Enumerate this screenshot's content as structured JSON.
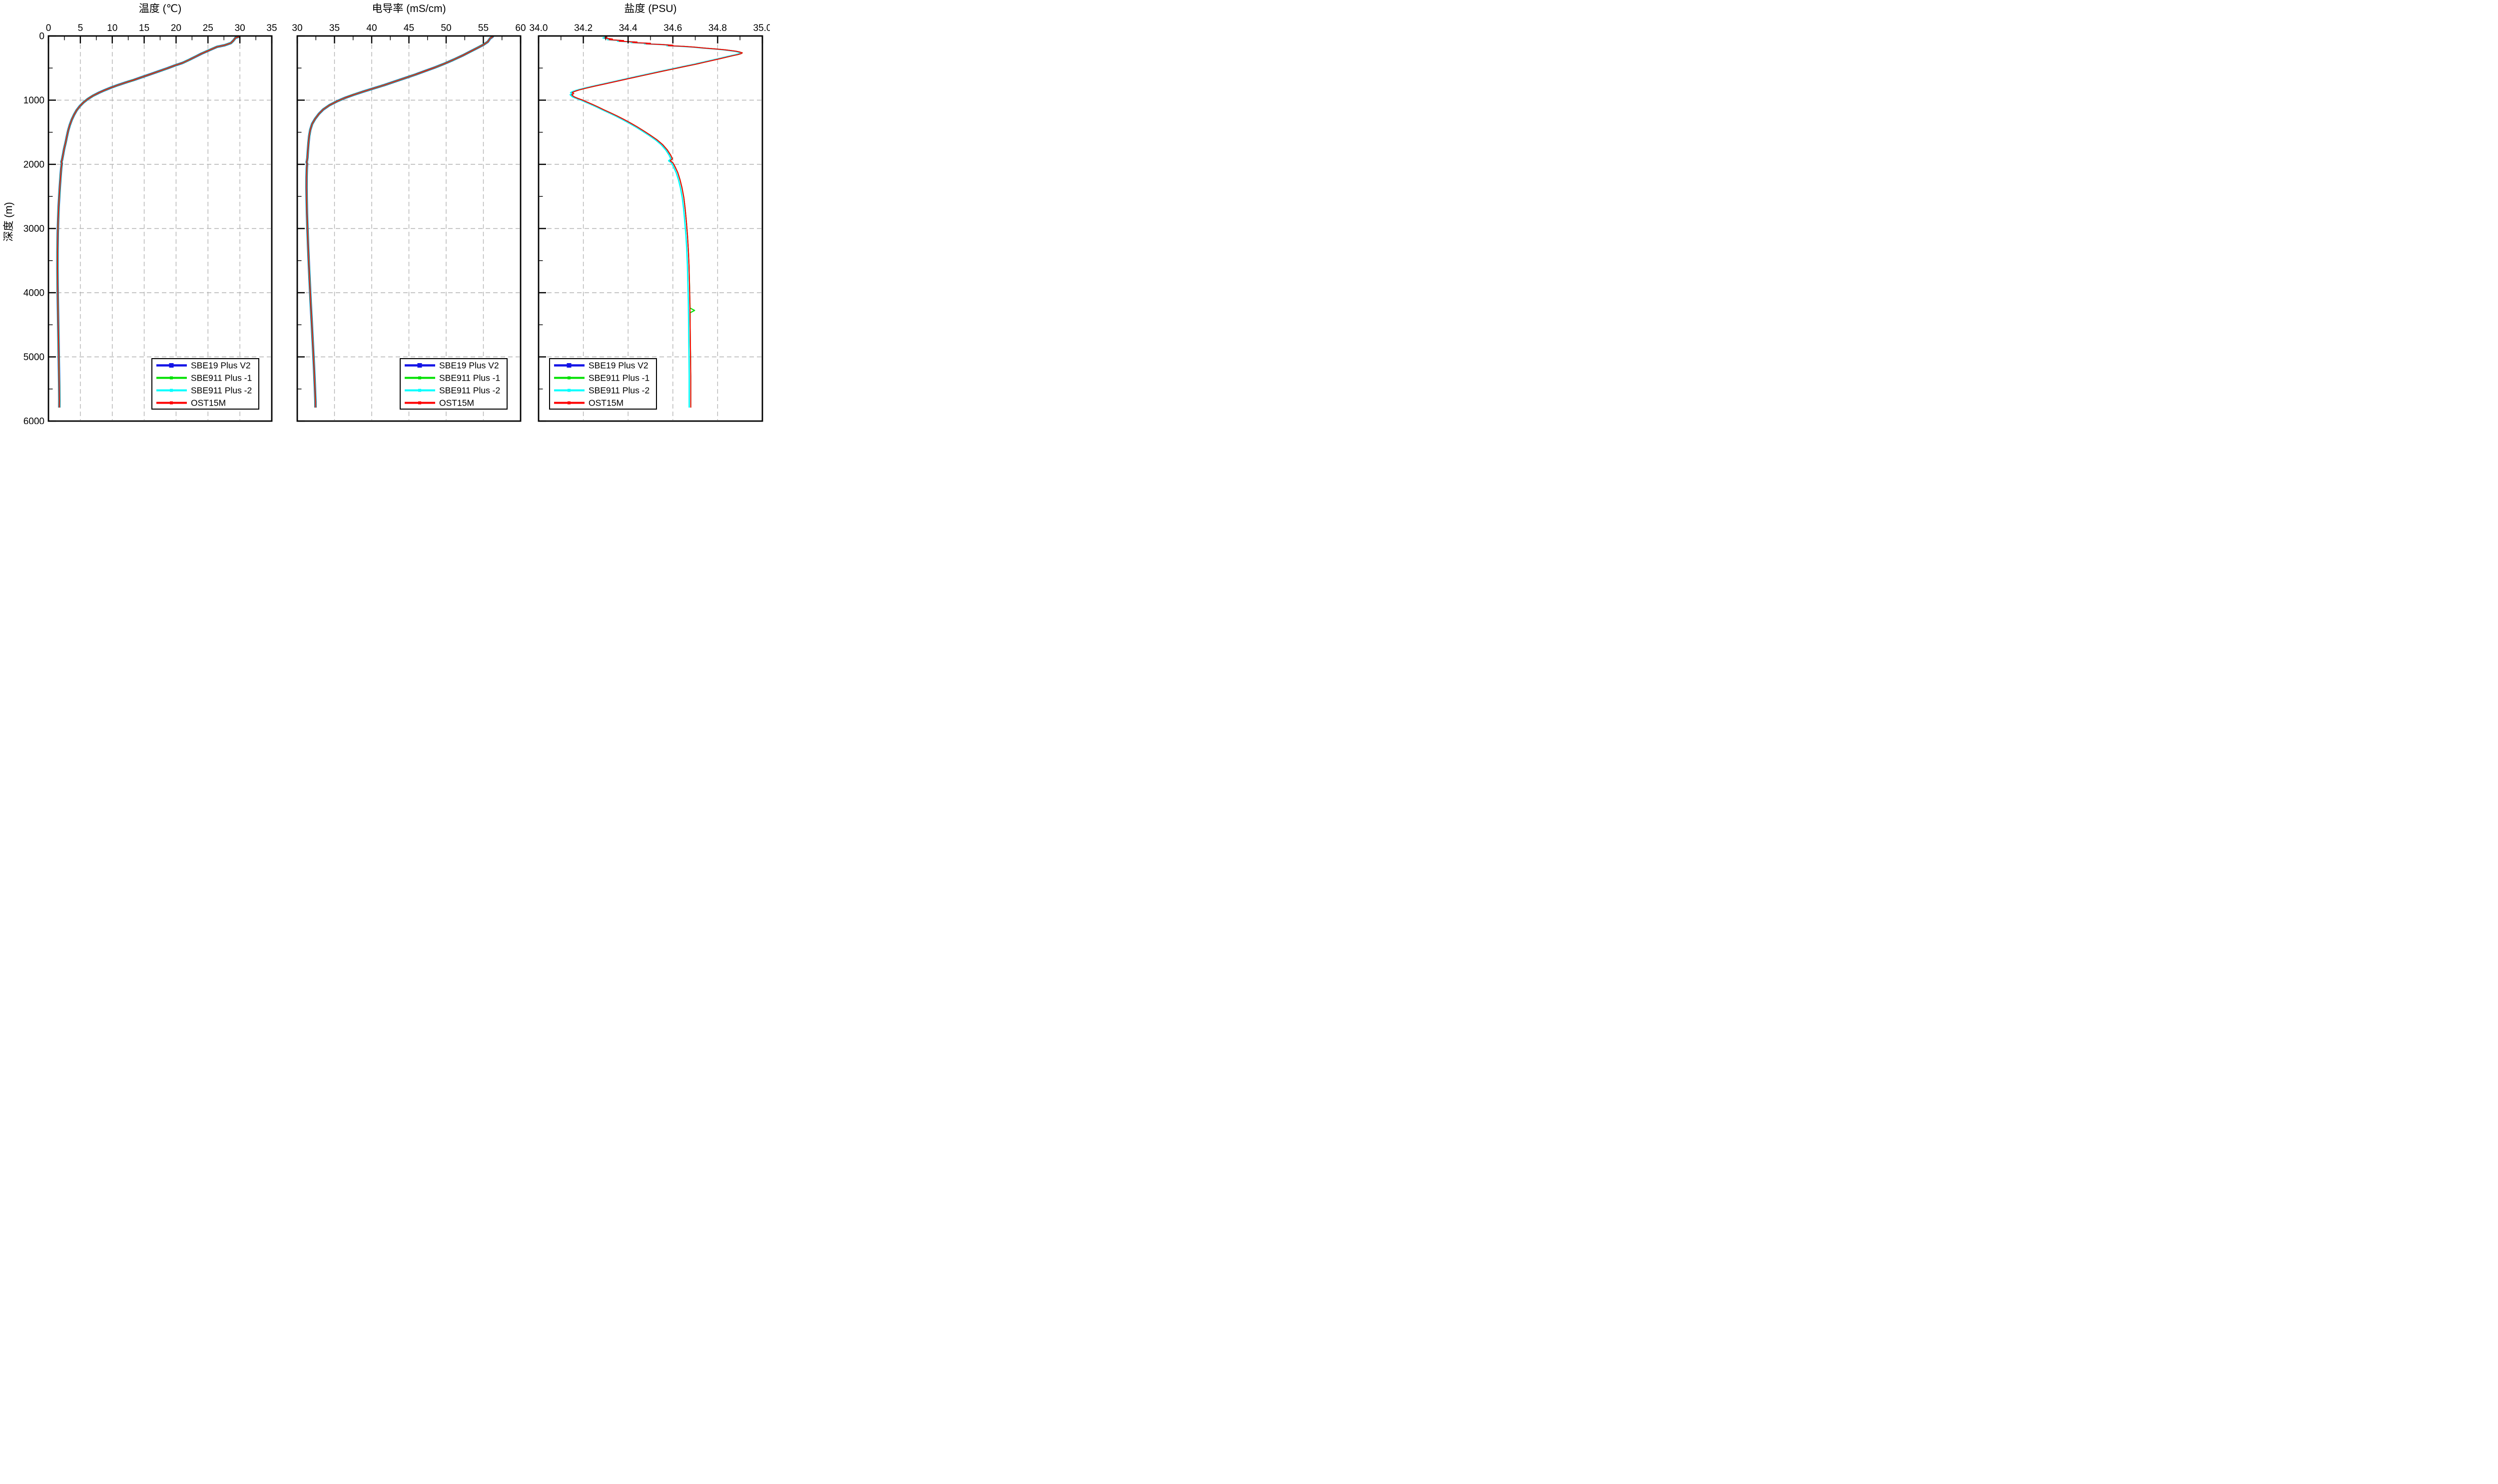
{
  "figure": {
    "background": "#ffffff",
    "description": "CTD instrument comparison profiles"
  },
  "y_axis": {
    "label": "深度 (m)",
    "range": [
      0,
      6000
    ],
    "tick_values": [
      0,
      1000,
      2000,
      3000,
      4000,
      5000,
      6000
    ],
    "tick_labels": [
      "0",
      "1000",
      "2000",
      "3000",
      "4000",
      "5000",
      "6000"
    ],
    "minor_tick_values": [
      500,
      1500,
      2500,
      3500,
      4500,
      5500
    ]
  },
  "legend": {
    "items": [
      {
        "label": "SBE19  Plus V2",
        "color": "#1414e6"
      },
      {
        "label": "SBE911 Plus -1",
        "color": "#00e000"
      },
      {
        "label": "SBE911 Plus -2",
        "color": "#00ffff"
      },
      {
        "label": "OST15M",
        "color": "#ff0000"
      }
    ]
  },
  "chart_data": [
    {
      "id": "temperature",
      "type": "line",
      "title": "温度 (℃)",
      "xlabel": "温度 (℃)",
      "ylabel": "深度 (m)",
      "x_range": [
        0,
        35
      ],
      "x_tick_values": [
        0,
        5,
        10,
        15,
        20,
        25,
        30,
        35
      ],
      "x_tick_labels": [
        "0",
        "5",
        "10",
        "15",
        "20",
        "25",
        "30",
        "35"
      ],
      "x_minor_values": [
        2.5,
        7.5,
        12.5,
        17.5,
        22.5,
        27.5,
        32.5
      ],
      "grid": "dashed-gray-at-majors",
      "legend_position": "bottom-right",
      "profile": [
        [
          29.9,
          0
        ],
        [
          29.85,
          12
        ],
        [
          29.3,
          30
        ],
        [
          29.0,
          70
        ],
        [
          28.6,
          110
        ],
        [
          27.6,
          145
        ],
        [
          26.4,
          170
        ],
        [
          25.6,
          205
        ],
        [
          24.8,
          240
        ],
        [
          24.0,
          275
        ],
        [
          23.1,
          320
        ],
        [
          22.1,
          370
        ],
        [
          21.0,
          420
        ],
        [
          19.8,
          460
        ],
        [
          18.6,
          505
        ],
        [
          17.3,
          550
        ],
        [
          16.0,
          595
        ],
        [
          14.7,
          640
        ],
        [
          13.4,
          685
        ],
        [
          12.1,
          725
        ],
        [
          10.9,
          765
        ],
        [
          9.8,
          805
        ],
        [
          8.8,
          845
        ],
        [
          7.9,
          885
        ],
        [
          7.0,
          930
        ],
        [
          6.2,
          980
        ],
        [
          5.5,
          1035
        ],
        [
          4.9,
          1095
        ],
        [
          4.4,
          1160
        ],
        [
          4.0,
          1230
        ],
        [
          3.65,
          1305
        ],
        [
          3.35,
          1385
        ],
        [
          3.1,
          1470
        ],
        [
          2.9,
          1560
        ],
        [
          2.7,
          1655
        ],
        [
          2.45,
          1760
        ],
        [
          2.25,
          1870
        ],
        [
          2.12,
          1935
        ],
        [
          2.03,
          1960
        ],
        [
          2.1,
          1985
        ],
        [
          2.0,
          2060
        ],
        [
          1.9,
          2180
        ],
        [
          1.8,
          2320
        ],
        [
          1.7,
          2480
        ],
        [
          1.6,
          2660
        ],
        [
          1.52,
          2860
        ],
        [
          1.46,
          3080
        ],
        [
          1.42,
          3350
        ],
        [
          1.41,
          3620
        ],
        [
          1.43,
          3880
        ],
        [
          1.47,
          4150
        ],
        [
          1.52,
          4450
        ],
        [
          1.58,
          4800
        ],
        [
          1.64,
          5150
        ],
        [
          1.68,
          5450
        ],
        [
          1.71,
          5680
        ],
        [
          1.7,
          5790
        ]
      ],
      "series": [
        {
          "name": "SBE19  Plus V2",
          "color": "#1414e6",
          "width": 4.8,
          "offset": 0
        },
        {
          "name": "SBE911 Plus -1",
          "color": "#00e000",
          "width": 3.8,
          "offset": 0
        },
        {
          "name": "SBE911 Plus -2",
          "color": "#00ffff",
          "width": 3.0,
          "offset": 0
        },
        {
          "name": "OST15M",
          "color": "#ff0000",
          "width": 2.0,
          "offset": 0
        }
      ]
    },
    {
      "id": "conductivity",
      "type": "line",
      "title": "电导率 (mS/cm)",
      "xlabel": "电导率 (mS/cm)",
      "ylabel": "深度 (m)",
      "x_range": [
        30,
        60
      ],
      "x_tick_values": [
        30,
        35,
        40,
        45,
        50,
        55,
        60
      ],
      "x_tick_labels": [
        "30",
        "35",
        "40",
        "45",
        "50",
        "55",
        "60"
      ],
      "x_minor_values": [
        32.5,
        37.5,
        42.5,
        47.5,
        52.5,
        57.5
      ],
      "grid": "dashed-gray-at-majors",
      "legend_position": "bottom-right",
      "profile": [
        [
          56.3,
          0
        ],
        [
          56.25,
          12
        ],
        [
          55.9,
          40
        ],
        [
          55.6,
          90
        ],
        [
          55.1,
          130
        ],
        [
          54.3,
          180
        ],
        [
          53.3,
          240
        ],
        [
          52.2,
          305
        ],
        [
          51.0,
          370
        ],
        [
          49.8,
          430
        ],
        [
          48.5,
          490
        ],
        [
          47.2,
          545
        ],
        [
          45.9,
          600
        ],
        [
          44.5,
          655
        ],
        [
          43.1,
          710
        ],
        [
          41.7,
          765
        ],
        [
          40.3,
          815
        ],
        [
          38.9,
          865
        ],
        [
          37.6,
          915
        ],
        [
          36.4,
          965
        ],
        [
          35.3,
          1020
        ],
        [
          34.3,
          1080
        ],
        [
          33.5,
          1145
        ],
        [
          32.9,
          1215
        ],
        [
          32.4,
          1290
        ],
        [
          32.0,
          1370
        ],
        [
          31.75,
          1460
        ],
        [
          31.6,
          1560
        ],
        [
          31.5,
          1670
        ],
        [
          31.42,
          1790
        ],
        [
          31.36,
          1900
        ],
        [
          31.3,
          1945
        ],
        [
          31.26,
          1965
        ],
        [
          31.32,
          1990
        ],
        [
          31.28,
          2060
        ],
        [
          31.25,
          2200
        ],
        [
          31.24,
          2360
        ],
        [
          31.26,
          2540
        ],
        [
          31.3,
          2760
        ],
        [
          31.37,
          3000
        ],
        [
          31.45,
          3260
        ],
        [
          31.55,
          3540
        ],
        [
          31.67,
          3840
        ],
        [
          31.8,
          4150
        ],
        [
          31.95,
          4480
        ],
        [
          32.1,
          4820
        ],
        [
          32.25,
          5160
        ],
        [
          32.37,
          5480
        ],
        [
          32.44,
          5700
        ],
        [
          32.45,
          5790
        ]
      ],
      "series": [
        {
          "name": "SBE19  Plus V2",
          "color": "#1414e6",
          "width": 4.8,
          "offset": 0
        },
        {
          "name": "SBE911 Plus -1",
          "color": "#00e000",
          "width": 3.8,
          "offset": 0
        },
        {
          "name": "SBE911 Plus -2",
          "color": "#00ffff",
          "width": 3.0,
          "offset": 0
        },
        {
          "name": "OST15M",
          "color": "#ff0000",
          "width": 2.0,
          "offset": 0
        }
      ]
    },
    {
      "id": "salinity",
      "type": "line",
      "title": "盐度 (PSU)",
      "xlabel": "盐度 (PSU)",
      "ylabel": "深度 (m)",
      "x_range": [
        34.0,
        35.0
      ],
      "x_tick_values": [
        34.0,
        34.2,
        34.4,
        34.6,
        34.8,
        35.0
      ],
      "x_tick_labels": [
        "34.0",
        "34.2",
        "34.4",
        "34.6",
        "34.8",
        "35.0"
      ],
      "x_minor_values": [
        34.1,
        34.3,
        34.5,
        34.7,
        34.9
      ],
      "grid": "dashed-gray-at-majors",
      "legend_position": "bottom-left",
      "profile": [
        [
          34.3,
          8
        ],
        [
          34.305,
          20
        ],
        [
          34.295,
          32
        ],
        [
          34.33,
          48
        ],
        [
          34.315,
          58
        ],
        [
          34.38,
          72
        ],
        [
          34.36,
          82
        ],
        [
          34.44,
          95
        ],
        [
          34.42,
          103
        ],
        [
          34.5,
          115
        ],
        [
          34.48,
          122
        ],
        [
          34.55,
          133
        ],
        [
          34.6,
          145
        ],
        [
          34.58,
          152
        ],
        [
          34.65,
          163
        ],
        [
          34.7,
          175
        ],
        [
          34.74,
          188
        ],
        [
          34.79,
          202
        ],
        [
          34.83,
          215
        ],
        [
          34.86,
          228
        ],
        [
          34.885,
          240
        ],
        [
          34.9,
          252
        ],
        [
          34.91,
          263
        ],
        [
          34.905,
          275
        ],
        [
          34.89,
          290
        ],
        [
          34.87,
          305
        ],
        [
          34.845,
          325
        ],
        [
          34.815,
          350
        ],
        [
          34.78,
          378
        ],
        [
          34.74,
          410
        ],
        [
          34.7,
          442
        ],
        [
          34.65,
          478
        ],
        [
          34.6,
          515
        ],
        [
          34.55,
          552
        ],
        [
          34.5,
          590
        ],
        [
          34.45,
          628
        ],
        [
          34.4,
          666
        ],
        [
          34.35,
          705
        ],
        [
          34.3,
          744
        ],
        [
          34.25,
          782
        ],
        [
          34.21,
          815
        ],
        [
          34.18,
          842
        ],
        [
          34.16,
          865
        ],
        [
          34.15,
          882
        ],
        [
          34.157,
          898
        ],
        [
          34.148,
          915
        ],
        [
          34.153,
          932
        ],
        [
          34.16,
          950
        ],
        [
          34.175,
          972
        ],
        [
          34.195,
          998
        ],
        [
          34.215,
          1028
        ],
        [
          34.24,
          1065
        ],
        [
          34.265,
          1105
        ],
        [
          34.29,
          1148
        ],
        [
          34.32,
          1195
        ],
        [
          34.35,
          1245
        ],
        [
          34.38,
          1298
        ],
        [
          34.41,
          1355
        ],
        [
          34.44,
          1415
        ],
        [
          34.47,
          1480
        ],
        [
          34.5,
          1548
        ],
        [
          34.53,
          1620
        ],
        [
          34.555,
          1695
        ],
        [
          34.575,
          1775
        ],
        [
          34.59,
          1855
        ],
        [
          34.598,
          1915
        ],
        [
          34.588,
          1945
        ],
        [
          34.6,
          1975
        ],
        [
          34.61,
          2040
        ],
        [
          34.622,
          2130
        ],
        [
          34.632,
          2240
        ],
        [
          34.641,
          2370
        ],
        [
          34.649,
          2520
        ],
        [
          34.655,
          2690
        ],
        [
          34.66,
          2880
        ],
        [
          34.665,
          3090
        ],
        [
          34.669,
          3320
        ],
        [
          34.672,
          3570
        ],
        [
          34.674,
          3840
        ],
        [
          34.676,
          4120
        ],
        [
          34.677,
          4400
        ],
        [
          34.678,
          4700
        ],
        [
          34.679,
          5000
        ],
        [
          34.68,
          5300
        ],
        [
          34.68,
          5600
        ],
        [
          34.68,
          5790
        ]
      ],
      "series": [
        {
          "name": "SBE19  Plus V2",
          "color": "#1414e6",
          "width": 2.0,
          "offset": 0
        },
        {
          "name": "SBE911 Plus -1",
          "color": "#00e000",
          "width": 2.2,
          "offset": 0,
          "spike": [
            [
              34.677,
              4240
            ],
            [
              34.697,
              4276
            ],
            [
              34.677,
              4312
            ]
          ]
        },
        {
          "name": "SBE911 Plus -2",
          "color": "#00ffff",
          "width": 2.6,
          "offset": -0.007
        },
        {
          "name": "OST15M",
          "color": "#ff0000",
          "width": 2.0,
          "offset": 0
        }
      ]
    }
  ]
}
